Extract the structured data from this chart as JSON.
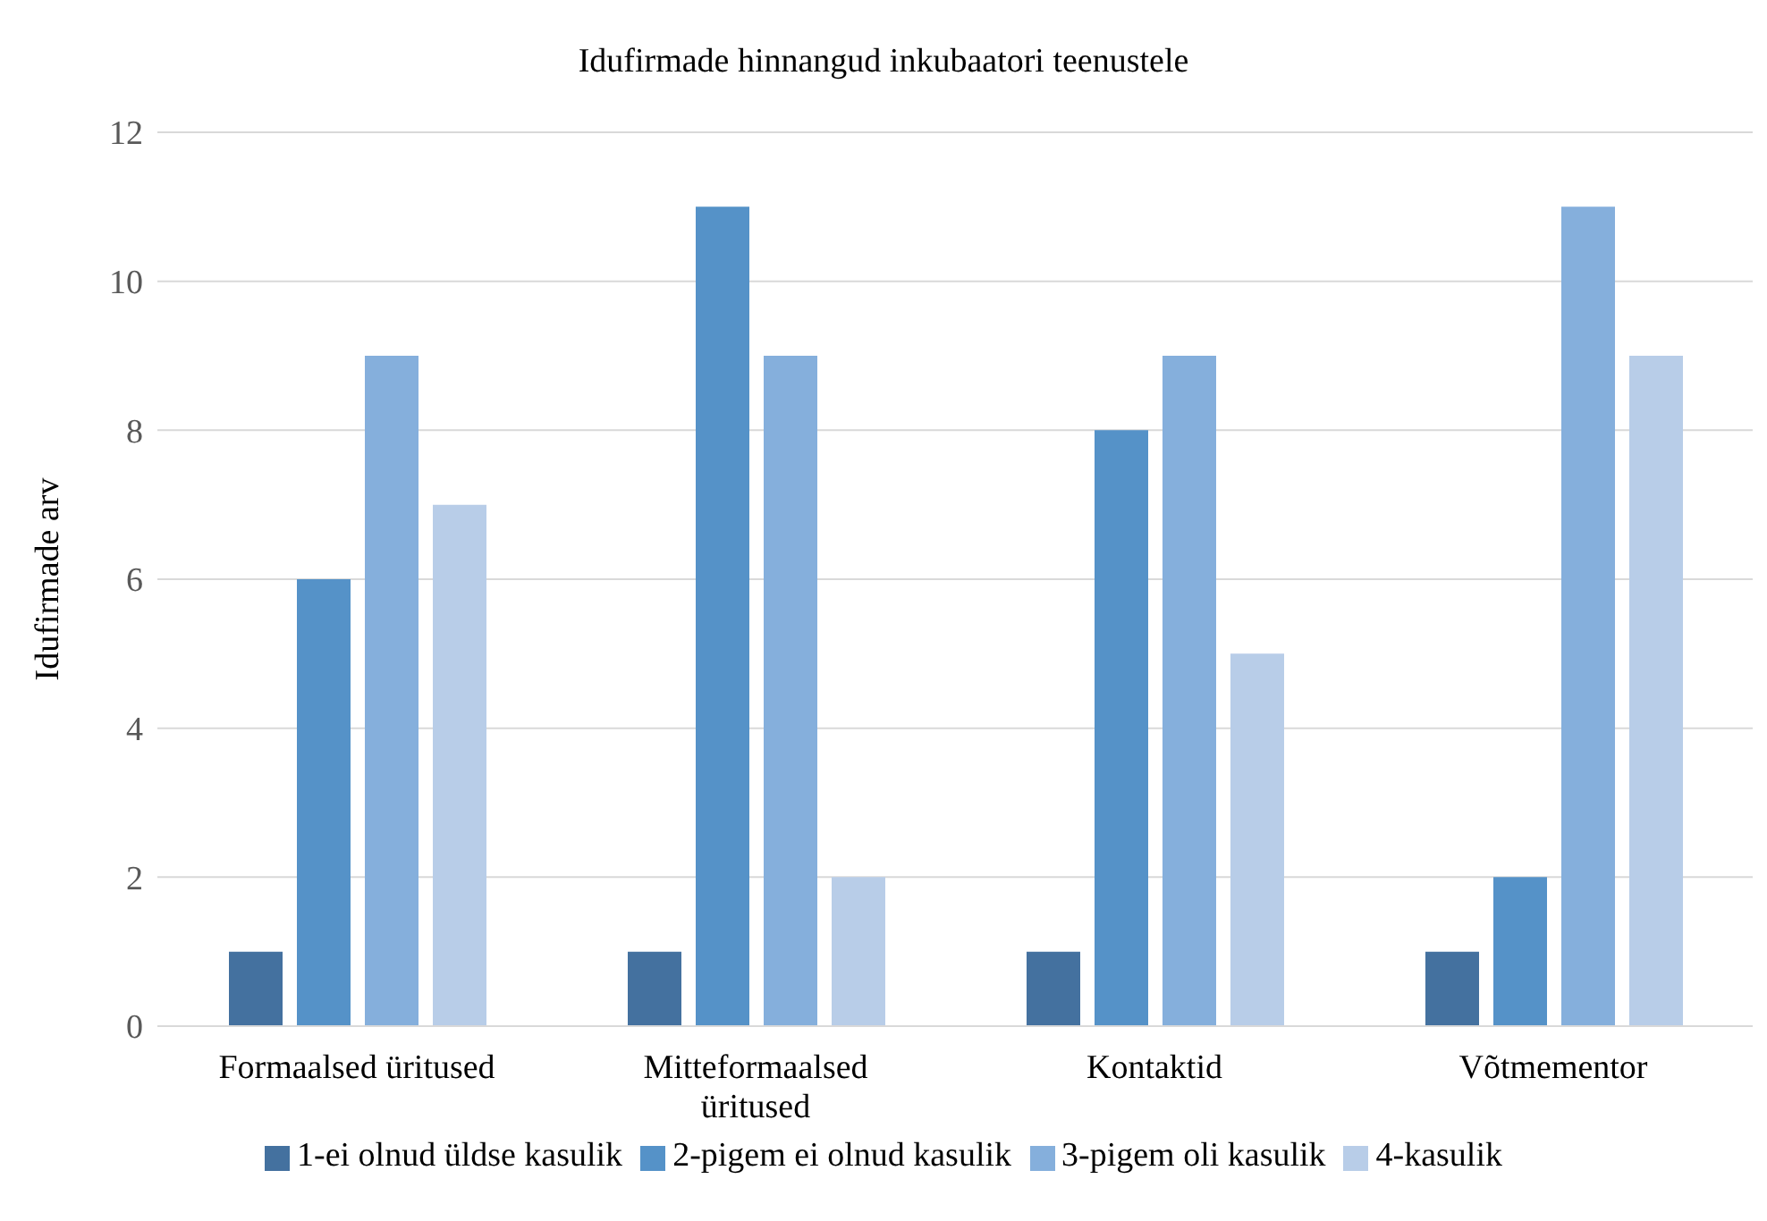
{
  "chart_data": {
    "type": "bar",
    "title": "Idufirmade hinnangud inkubaatori teenustele",
    "ylabel": "Idufirmade arv",
    "categories": [
      "Formaalsed üritused",
      "Mitteformaalsed üritused",
      "Kontaktid",
      "Võtmementor"
    ],
    "series": [
      {
        "name": "1-ei olnud üldse kasulik",
        "color": "#44719f",
        "values": [
          1,
          1,
          1,
          1
        ]
      },
      {
        "name": "2-pigem ei olnud kasulik",
        "color": "#5592c8",
        "values": [
          6,
          11,
          8,
          2
        ]
      },
      {
        "name": "3-pigem oli kasulik",
        "color": "#85afdc",
        "values": [
          9,
          9,
          9,
          11
        ]
      },
      {
        "name": "4-kasulik",
        "color": "#b8cde8",
        "values": [
          7,
          2,
          5,
          9
        ]
      }
    ],
    "ylim": [
      0,
      12
    ],
    "yticks": [
      0,
      2,
      4,
      6,
      8,
      10,
      12
    ],
    "grid": "y",
    "legend": "bottom"
  }
}
